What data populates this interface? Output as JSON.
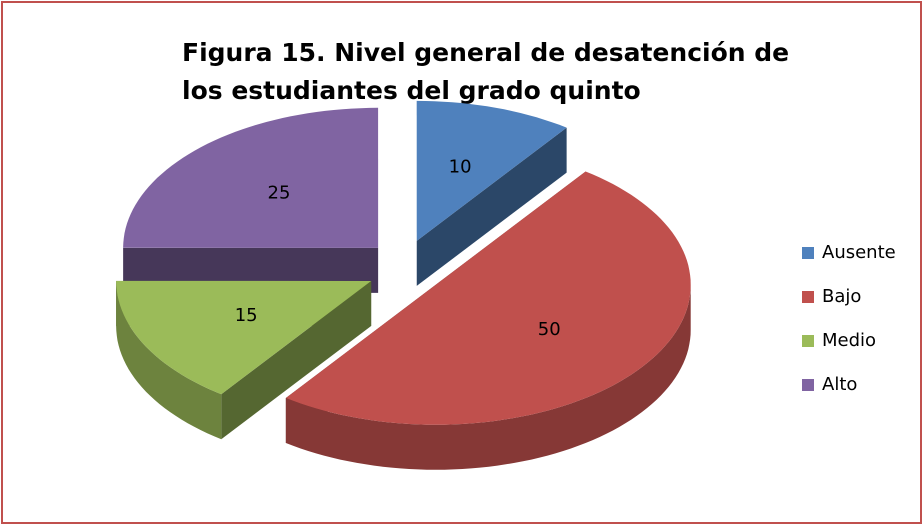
{
  "chart_data": {
    "type": "pie",
    "title": "Figura 15. Nivel general de desatención de los estudiantes del grado quinto",
    "categories": [
      "Ausente",
      "Bajo",
      "Medio",
      "Alto"
    ],
    "values": [
      10,
      50,
      15,
      25
    ],
    "colors": [
      "#4f81bd",
      "#c0504d",
      "#9bbb59",
      "#8064a2"
    ],
    "legend": "right"
  }
}
